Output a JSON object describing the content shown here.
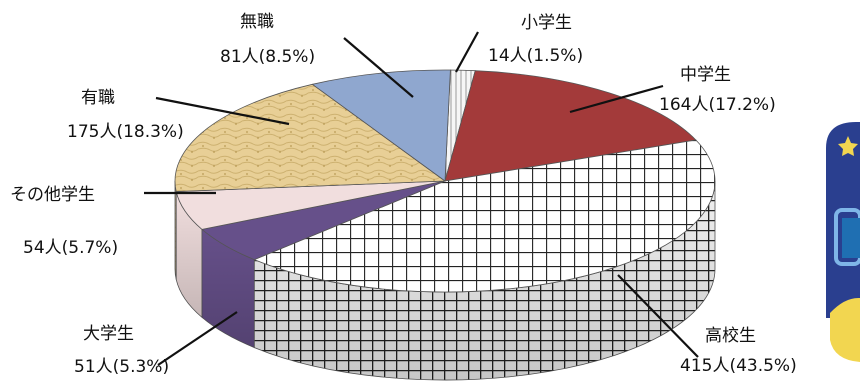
{
  "chart_data": {
    "type": "pie",
    "style": "3d-pie",
    "title": "",
    "legend": "none",
    "slices": [
      {
        "label": "小学生",
        "display": "14人(1.5%)",
        "value": 14,
        "percent": 1.5,
        "color": "#f4f4f4",
        "pattern": "vlines"
      },
      {
        "label": "中学生",
        "display": "164人(17.2%)",
        "value": 164,
        "percent": 17.2,
        "color": "#a33a3a",
        "pattern": "solid"
      },
      {
        "label": "高校生",
        "display": "415人(43.5%)",
        "value": 415,
        "percent": 43.5,
        "color": "#ffffff",
        "pattern": "grid"
      },
      {
        "label": "大学生",
        "display": "51人(5.3%)",
        "value": 51,
        "percent": 5.3,
        "color": "#66508a",
        "pattern": "solid"
      },
      {
        "label": "その他学生",
        "display": "54人(5.7%)",
        "value": 54,
        "percent": 5.7,
        "color": "#f1dede",
        "pattern": "solid"
      },
      {
        "label": "有職",
        "display": "175人(18.3%)",
        "value": 175,
        "percent": 18.3,
        "color": "#e8cf96",
        "pattern": "texture"
      },
      {
        "label": "無職",
        "display": "81人(8.5%)",
        "value": 81,
        "percent": 8.5,
        "color": "#8fa7cf",
        "pattern": "solid"
      }
    ]
  },
  "decoration": {
    "icon": "cartoon-mascot-icon",
    "colors": [
      "#2a3f8f",
      "#f2d650",
      "#ffffff"
    ]
  }
}
